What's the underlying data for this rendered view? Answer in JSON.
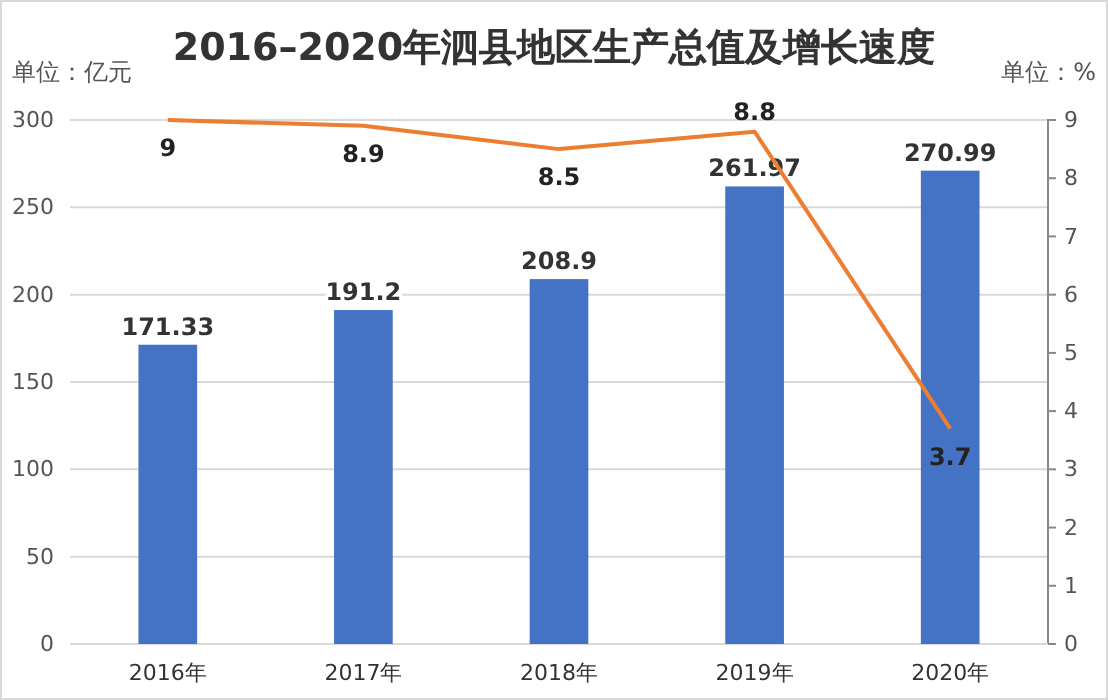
{
  "chart_data": {
    "type": "bar",
    "title": "2016–2020年泗县地区生产总值及增长速度",
    "ylabel": "单位：亿元",
    "y2label": "单位：%",
    "categories": [
      "2016年",
      "2017年",
      "2018年",
      "2019年",
      "2020年"
    ],
    "series": [
      {
        "color": "#4472c4",
        "values": [
          171.33,
          191.2,
          208.9,
          261.97,
          270.99
        ]
      },
      {
        "type": "line",
        "axis": "y2",
        "color": "#ed7d31",
        "values": [
          9,
          8.9,
          8.5,
          8.8,
          3.7
        ]
      }
    ],
    "ylim": [
      0,
      300
    ],
    "yticks": [
      0,
      50,
      100,
      150,
      200,
      250,
      300
    ],
    "y2lim": [
      0,
      9
    ],
    "y2ticks": [
      0,
      1,
      2,
      3,
      4,
      5,
      6,
      7,
      8,
      9
    ],
    "grid": "y",
    "data_labels": true,
    "marker": "none"
  }
}
